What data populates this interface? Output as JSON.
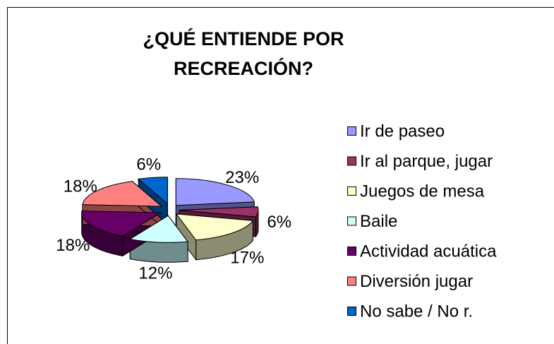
{
  "chart_data": {
    "type": "pie3d",
    "title": "¿QUÉ ENTIENDE POR RECREACIÓN?",
    "categories": [
      "Ir de paseo",
      "Ir al parque, jugar",
      "Juegos de mesa",
      "Baile",
      "Actividad acuática",
      "Diversión jugar",
      "No sabe / No r."
    ],
    "values": [
      23,
      6,
      17,
      12,
      18,
      18,
      6
    ],
    "value_labels": [
      "23%",
      "6%",
      "17%",
      "12%",
      "18%",
      "18%",
      "6%"
    ],
    "colors": [
      "#9999FF",
      "#993366",
      "#FFFFCC",
      "#CCFFFF",
      "#660066",
      "#FF8080",
      "#0066CC"
    ],
    "legend": "right"
  }
}
